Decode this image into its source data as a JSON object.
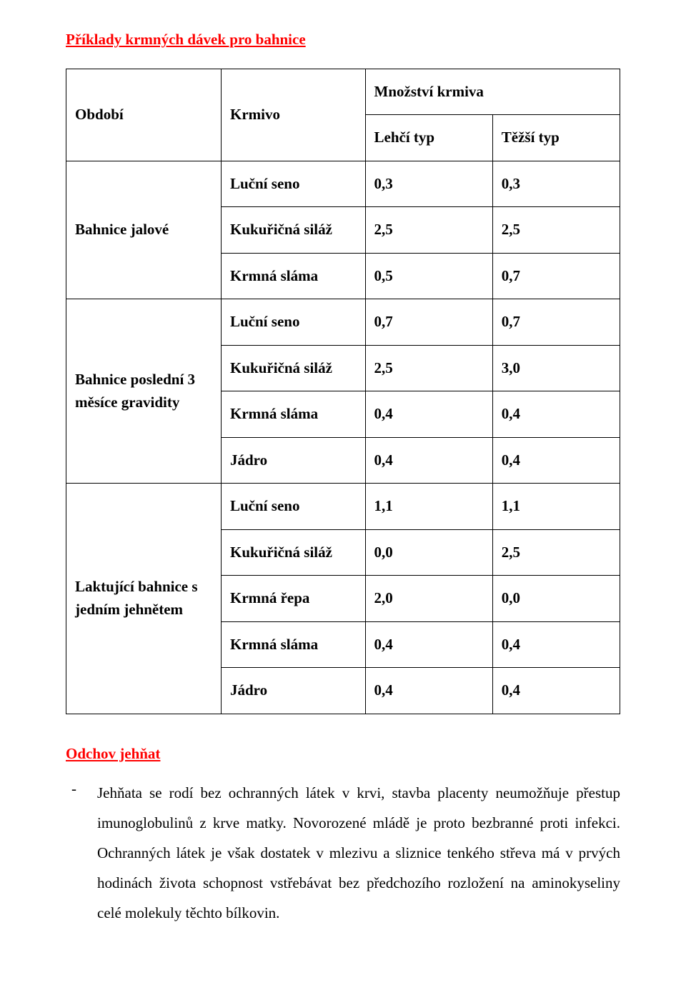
{
  "title": "Příklady krmných dávek pro bahnice",
  "table": {
    "header": {
      "period": "Období",
      "krmivo": "Krmivo",
      "qty": "Množství krmiva",
      "light": "Lehčí typ",
      "heavy": "Těžší typ"
    },
    "sections": [
      {
        "period": "Bahnice jalové",
        "rows": [
          {
            "feed": "Luční seno",
            "light": "0,3",
            "heavy": "0,3"
          },
          {
            "feed": "Kukuřičná siláž",
            "light": "2,5",
            "heavy": "2,5"
          },
          {
            "feed": "Krmná sláma",
            "light": "0,5",
            "heavy": "0,7"
          }
        ]
      },
      {
        "period": "Bahnice poslední 3 měsíce gravidity",
        "rows": [
          {
            "feed": "Luční seno",
            "light": "0,7",
            "heavy": "0,7"
          },
          {
            "feed": "Kukuřičná siláž",
            "light": "2,5",
            "heavy": "3,0"
          },
          {
            "feed": "Krmná sláma",
            "light": "0,4",
            "heavy": "0,4"
          },
          {
            "feed": "Jádro",
            "light": "0,4",
            "heavy": "0,4"
          }
        ]
      },
      {
        "period": "Laktující bahnice s jedním jehnětem",
        "rows": [
          {
            "feed": "Luční seno",
            "light": "1,1",
            "heavy": "1,1"
          },
          {
            "feed": "Kukuřičná siláž",
            "light": "0,0",
            "heavy": "2,5"
          },
          {
            "feed": "Krmná řepa",
            "light": "2,0",
            "heavy": "0,0"
          },
          {
            "feed": "Krmná sláma",
            "light": "0,4",
            "heavy": "0,4"
          },
          {
            "feed": "Jádro",
            "light": "0,4",
            "heavy": "0,4"
          }
        ]
      }
    ]
  },
  "subheading": "Odchov jehňat",
  "paragraph": "Jehňata se rodí bez ochranných látek v krvi, stavba placenty neumožňuje přestup imunoglobulinů z krve matky. Novorozené mládě je proto bezbranné proti infekci. Ochranných látek je však dostatek v mlezivu a sliznice tenkého střeva má v prvých hodinách života schopnost vstřebávat bez předchozího rozložení na aminokyseliny celé molekuly těchto bílkovin.",
  "bullet": "-"
}
